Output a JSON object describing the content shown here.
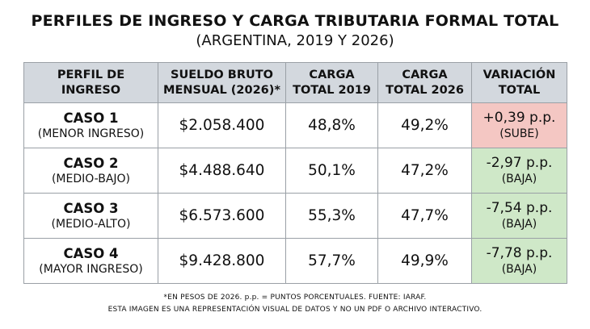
{
  "title": "PERFILES DE INGRESO Y CARGA TRIBUTARIA FORMAL TOTAL",
  "subtitle": "(ARGENTINA, 2019 Y 2026)",
  "headers": [
    [
      "PERFIL DE",
      "INGRESO"
    ],
    [
      "SUELDO BRUTO",
      "MENSUAL (2026)*"
    ],
    [
      "CARGA",
      "TOTAL 2019"
    ],
    [
      "CARGA",
      "TOTAL 2026"
    ],
    [
      "VARIACIÓN",
      "TOTAL"
    ]
  ],
  "rows": [
    {
      "case": "CASO 1",
      "profile": "(MENOR INGRESO)",
      "salary": "$2.058.400",
      "carga_2019": "48,8%",
      "carga_2026": "49,2%",
      "variation": "+0,39 p.p.",
      "direction": "(SUBE)",
      "status_color": "#f4c7c3"
    },
    {
      "case": "CASO 2",
      "profile": "(MEDIO-BAJO)",
      "salary": "$4.488.640",
      "carga_2019": "50,1%",
      "carga_2026": "47,2%",
      "variation": "-2,97 p.p.",
      "direction": "(BAJA)",
      "status_color": "#cfe8c8"
    },
    {
      "case": "CASO 3",
      "profile": "(MEDIO-ALTO)",
      "salary": "$6.573.600",
      "carga_2019": "55,3%",
      "carga_2026": "47,7%",
      "variation": "-7,54 p.p.",
      "direction": "(BAJA)",
      "status_color": "#cfe8c8"
    },
    {
      "case": "CASO 4",
      "profile": "(MAYOR INGRESO)",
      "salary": "$9.428.800",
      "carga_2019": "57,7%",
      "carga_2026": "49,9%",
      "variation": "-7,78 p.p.",
      "direction": "(BAJA)",
      "status_color": "#cfe8c8"
    }
  ],
  "notes": {
    "line1": "*EN PESOS DE 2026. p.p. = PUNTOS PORCENTUALES. FUENTE: IARAF.",
    "line2": "ESTA IMAGEN ES UNA REPRESENTACIÓN VISUAL DE DATOS Y NO UN PDF O ARCHIVO INTERACTIVO."
  },
  "chart_data": {
    "type": "table",
    "title": "PERFILES DE INGRESO Y CARGA TRIBUTARIA FORMAL TOTAL",
    "subtitle": "(ARGENTINA, 2019 Y 2026)",
    "columns": [
      "PERFIL DE INGRESO",
      "SUELDO BRUTO MENSUAL (2026)*",
      "CARGA TOTAL 2019",
      "CARGA TOTAL 2026",
      "VARIACIÓN TOTAL"
    ],
    "rows": [
      [
        "CASO 1 (MENOR INGRESO)",
        "$2.058.400",
        "48,8%",
        "49,2%",
        "+0,39 p.p. (SUBE)"
      ],
      [
        "CASO 2 (MEDIO-BAJO)",
        "$4.488.640",
        "50,1%",
        "47,2%",
        "-2,97 p.p. (BAJA)"
      ],
      [
        "CASO 3 (MEDIO-ALTO)",
        "$6.573.600",
        "55,3%",
        "47,7%",
        "-7,54 p.p. (BAJA)"
      ],
      [
        "CASO 4 (MAYOR INGRESO)",
        "$9.428.800",
        "57,7%",
        "49,9%",
        "-7,78 p.p. (BAJA)"
      ]
    ]
  }
}
